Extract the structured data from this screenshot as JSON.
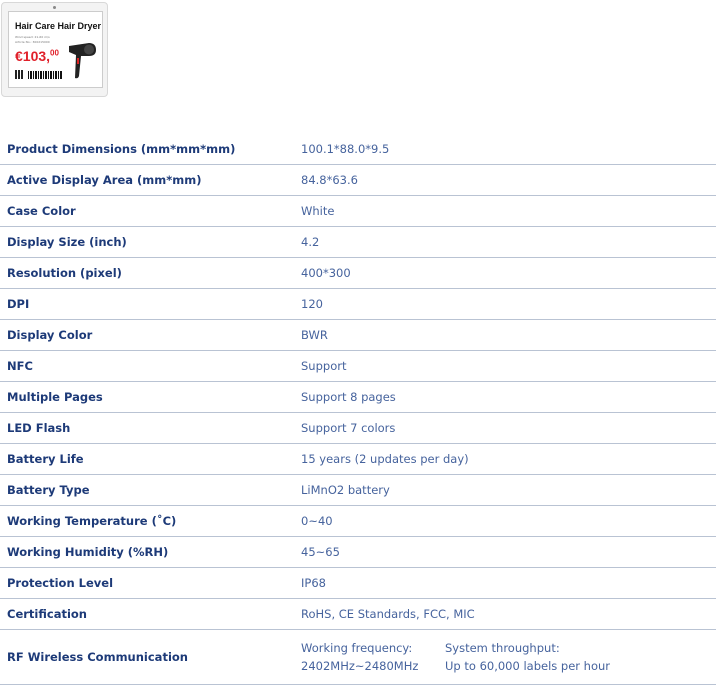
{
  "product_image": {
    "title": "Hair Care Hair Dryer",
    "line1": "Wind speed: 21-60 m/s",
    "line2": "Article No.: 300215000",
    "price": "€103,",
    "price_cents": "00"
  },
  "specs": [
    {
      "label": "Product Dimensions (mm*mm*mm)",
      "value": "100.1*88.0*9.5"
    },
    {
      "label": "Active Display Area (mm*mm)",
      "value": "84.8*63.6"
    },
    {
      "label": "Case Color",
      "value": "White"
    },
    {
      "label": "Display Size (inch)",
      "value": "4.2"
    },
    {
      "label": "Resolution (pixel)",
      "value": "400*300"
    },
    {
      "label": "DPI",
      "value": "120"
    },
    {
      "label": "Display Color",
      "value": "BWR"
    },
    {
      "label": "NFC",
      "value": "Support"
    },
    {
      "label": "Multiple Pages",
      "value": "Support 8 pages"
    },
    {
      "label": "LED Flash",
      "value": "Support 7 colors"
    },
    {
      "label": "Battery Life",
      "value": "15 years (2 updates per day)"
    },
    {
      "label": "Battery Type",
      "value": "LiMnO2 battery"
    },
    {
      "label": "Working Temperature (˚C)",
      "value": "0~40"
    },
    {
      "label": "Working Humidity (%RH)",
      "value": "45~65"
    },
    {
      "label": "Protection Level",
      "value": "IP68"
    },
    {
      "label": "Certification",
      "value": "RoHS, CE Standards, FCC, MIC"
    }
  ],
  "rf": {
    "label": "RF Wireless Communication",
    "freq_label": "Working frequency:",
    "freq_value": "2402MHz~2480MHz",
    "throughput_label": "System throughput:",
    "throughput_value": "Up to 60,000 labels per hour"
  }
}
